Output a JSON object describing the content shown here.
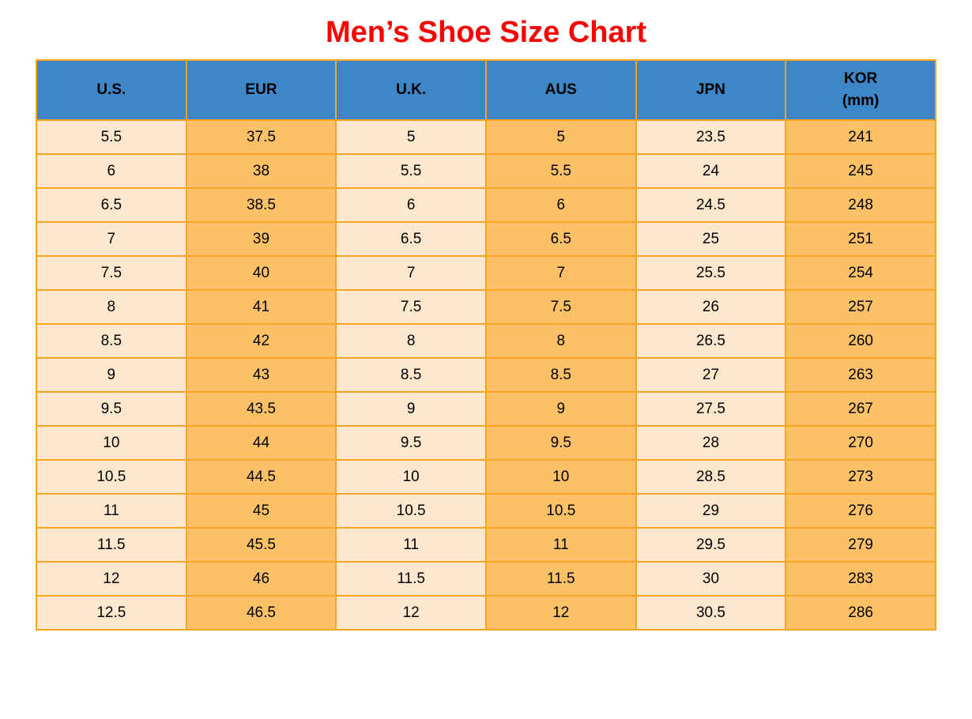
{
  "page": {
    "title": "Men’s Shoe Size Chart"
  },
  "colors": {
    "title": "#FF0000",
    "header_bg": "#3F86C6",
    "header_text": "#000000",
    "cell_light": "#FDE8CD",
    "cell_orange": "#FCC167",
    "border": "#F7A521",
    "cell_text": "#000000",
    "page_bg": "#FFFFFF"
  },
  "table": {
    "header_display": [
      "U.S.",
      "EUR",
      "U.K.",
      "AUS",
      "JPN",
      "KOR\n(mm)"
    ]
  },
  "chart_data": {
    "type": "table",
    "title": "Men’s Shoe Size Chart",
    "columns": [
      "U.S.",
      "EUR",
      "U.K.",
      "AUS",
      "JPN",
      "KOR (mm)"
    ],
    "rows": [
      [
        "5.5",
        "37.5",
        "5",
        "5",
        "23.5",
        "241"
      ],
      [
        "6",
        "38",
        "5.5",
        "5.5",
        "24",
        "245"
      ],
      [
        "6.5",
        "38.5",
        "6",
        "6",
        "24.5",
        "248"
      ],
      [
        "7",
        "39",
        "6.5",
        "6.5",
        "25",
        "251"
      ],
      [
        "7.5",
        "40",
        "7",
        "7",
        "25.5",
        "254"
      ],
      [
        "8",
        "41",
        "7.5",
        "7.5",
        "26",
        "257"
      ],
      [
        "8.5",
        "42",
        "8",
        "8",
        "26.5",
        "260"
      ],
      [
        "9",
        "43",
        "8.5",
        "8.5",
        "27",
        "263"
      ],
      [
        "9.5",
        "43.5",
        "9",
        "9",
        "27.5",
        "267"
      ],
      [
        "10",
        "44",
        "9.5",
        "9.5",
        "28",
        "270"
      ],
      [
        "10.5",
        "44.5",
        "10",
        "10",
        "28.5",
        "273"
      ],
      [
        "11",
        "45",
        "10.5",
        "10.5",
        "29",
        "276"
      ],
      [
        "11.5",
        "45.5",
        "11",
        "11",
        "29.5",
        "279"
      ],
      [
        "12",
        "46",
        "11.5",
        "11.5",
        "30",
        "283"
      ],
      [
        "12.5",
        "46.5",
        "12",
        "12",
        "30.5",
        "286"
      ]
    ],
    "column_stripe_pattern": [
      "light",
      "orange",
      "light",
      "orange",
      "light",
      "orange"
    ],
    "layout_hints": {
      "header_style": "blue band, bold black text",
      "grid": "orange gridlines on all cells",
      "striping": "vertical column stripes alternating cream / orange"
    }
  }
}
